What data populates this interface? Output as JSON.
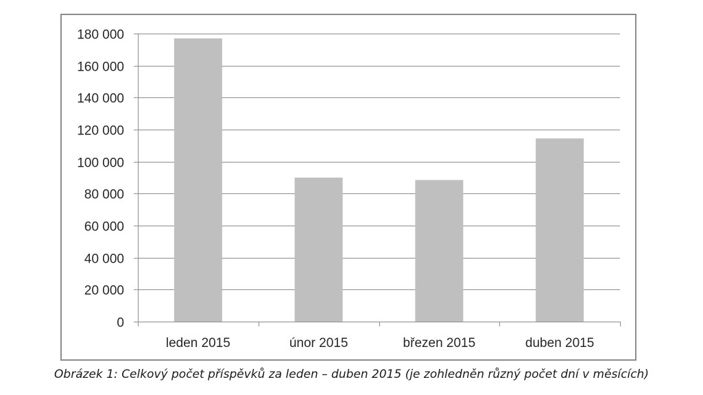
{
  "chart_data": {
    "type": "bar",
    "categories": [
      "leden 2015",
      "únor 2015",
      "březen 2015",
      "duben 2015"
    ],
    "values": [
      177000,
      90000,
      88500,
      114500
    ],
    "ylim": [
      0,
      180000
    ],
    "yticks": [
      0,
      20000,
      40000,
      60000,
      80000,
      100000,
      120000,
      140000,
      160000,
      180000
    ],
    "ytick_labels": [
      "0",
      "20 000",
      "40 000",
      "60 000",
      "80 000",
      "100 000",
      "120 000",
      "140 000",
      "160 000",
      "180 000"
    ],
    "grid": true,
    "bar_color": "#bfbfbf",
    "grid_color": "#8c8c8c",
    "title": "",
    "xlabel": "",
    "ylabel": ""
  },
  "caption": "Obrázek 1: Celkový počet příspěvků za leden – duben 2015 (je zohledněn různý počet dní v měsících)"
}
